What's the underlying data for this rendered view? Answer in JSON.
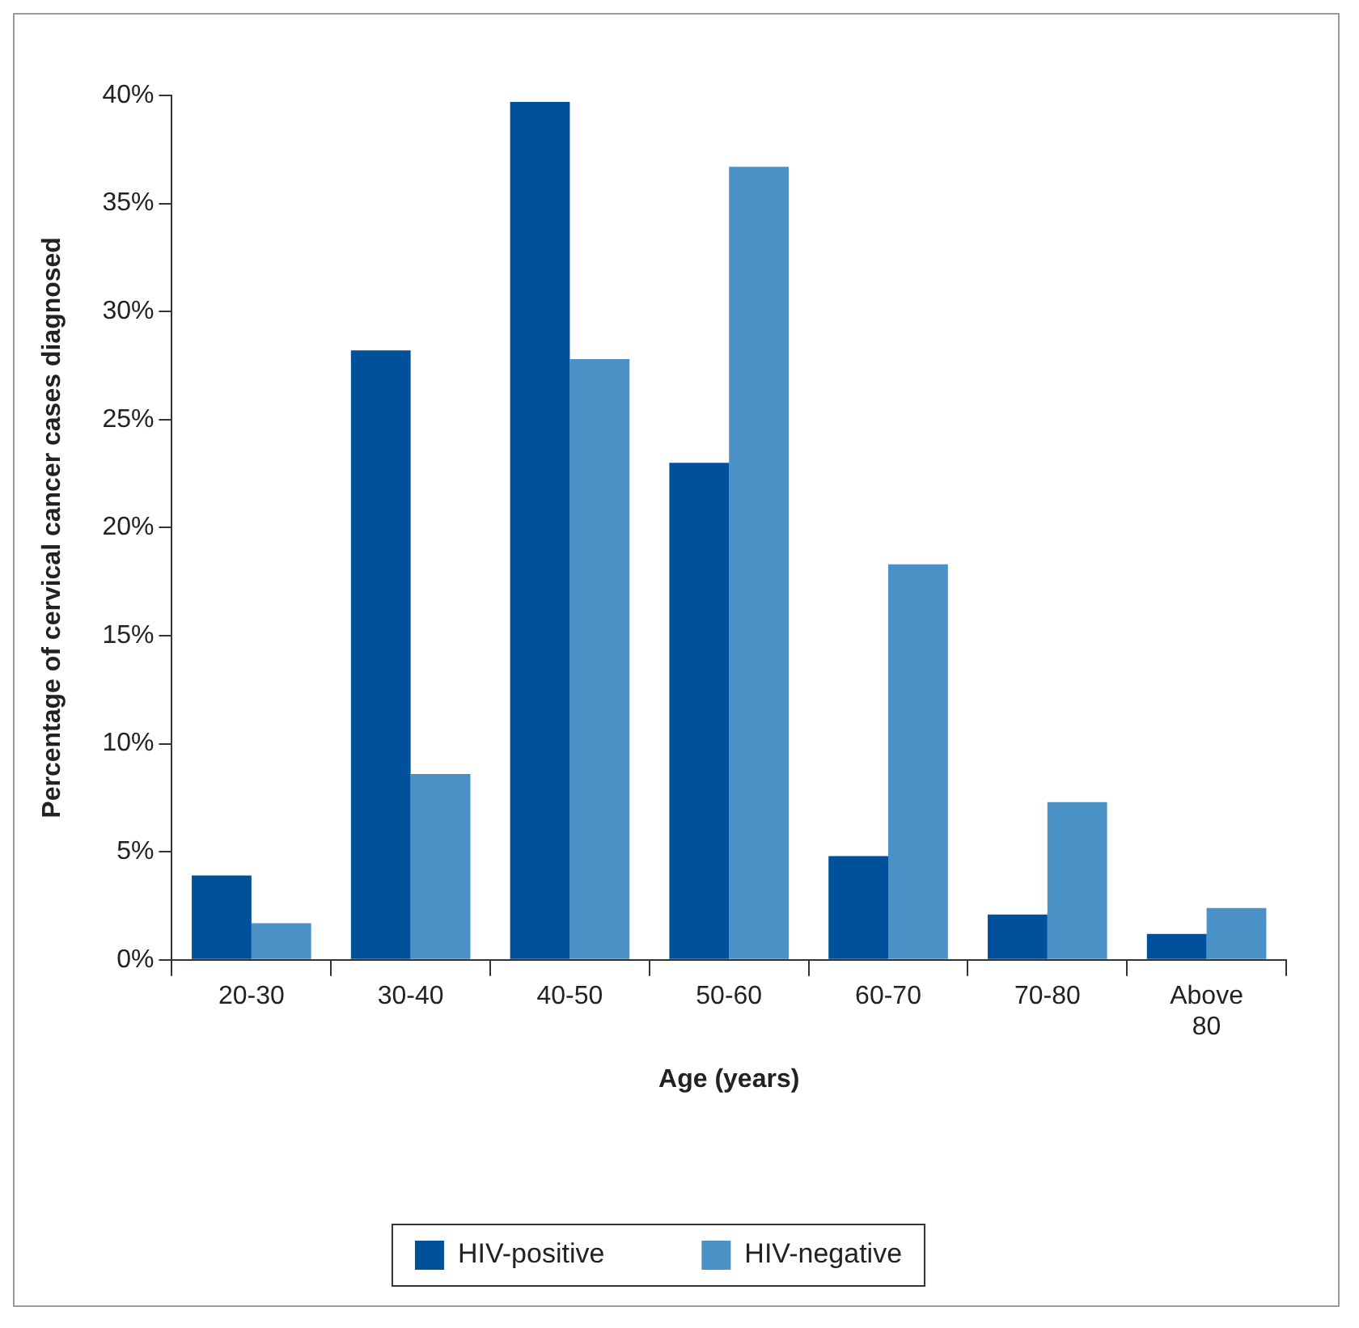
{
  "chart_data": {
    "type": "bar",
    "xlabel": "Age (years)",
    "ylabel": "Percentage of cervical cancer cases diagnosed",
    "categories": [
      "20-30",
      "30-40",
      "40-50",
      "50-60",
      "60-70",
      "70-80",
      "Above 80"
    ],
    "series": [
      {
        "name": "HIV-positive",
        "color": "#00509b",
        "values": [
          3.9,
          28.2,
          39.7,
          23.0,
          4.8,
          2.1,
          1.2
        ]
      },
      {
        "name": "HIV-negative",
        "color": "#4a92c6",
        "values": [
          1.7,
          8.6,
          27.8,
          36.7,
          18.3,
          7.3,
          2.4
        ]
      }
    ],
    "ylim": [
      0,
      40
    ],
    "yticks": [
      {
        "value": 0,
        "label": "0%"
      },
      {
        "value": 5,
        "label": "5%"
      },
      {
        "value": 10,
        "label": "10%"
      },
      {
        "value": 15,
        "label": "15%"
      },
      {
        "value": 20,
        "label": "20%"
      },
      {
        "value": 25,
        "label": "25%"
      },
      {
        "value": 30,
        "label": "30%"
      },
      {
        "value": 35,
        "label": "35%"
      },
      {
        "value": 40,
        "label": "40%"
      }
    ],
    "grid": false,
    "legend": "bottom"
  }
}
